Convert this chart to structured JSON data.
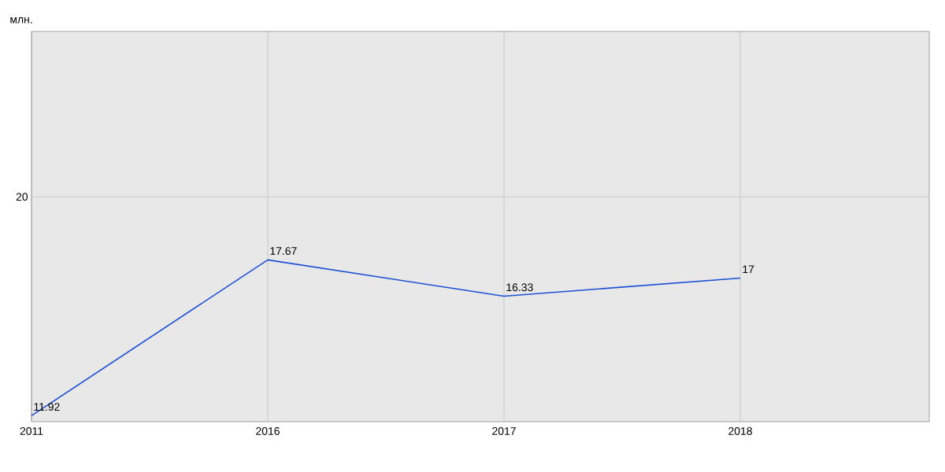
{
  "chart_data": {
    "type": "line",
    "ylabel": "млн.",
    "categories": [
      "2011",
      "2016",
      "2017",
      "2018"
    ],
    "values": [
      11.92,
      17.67,
      16.33,
      17
    ],
    "color": "#1a4fd6",
    "ylim": [
      11.7,
      26.1
    ],
    "grid": "x",
    "data_labels": true,
    "marker": "none",
    "line_style": "solid",
    "ref_lines": [
      {
        "axis": "y",
        "value": 20,
        "label": "20",
        "color": "#bfbfbf"
      }
    ]
  }
}
